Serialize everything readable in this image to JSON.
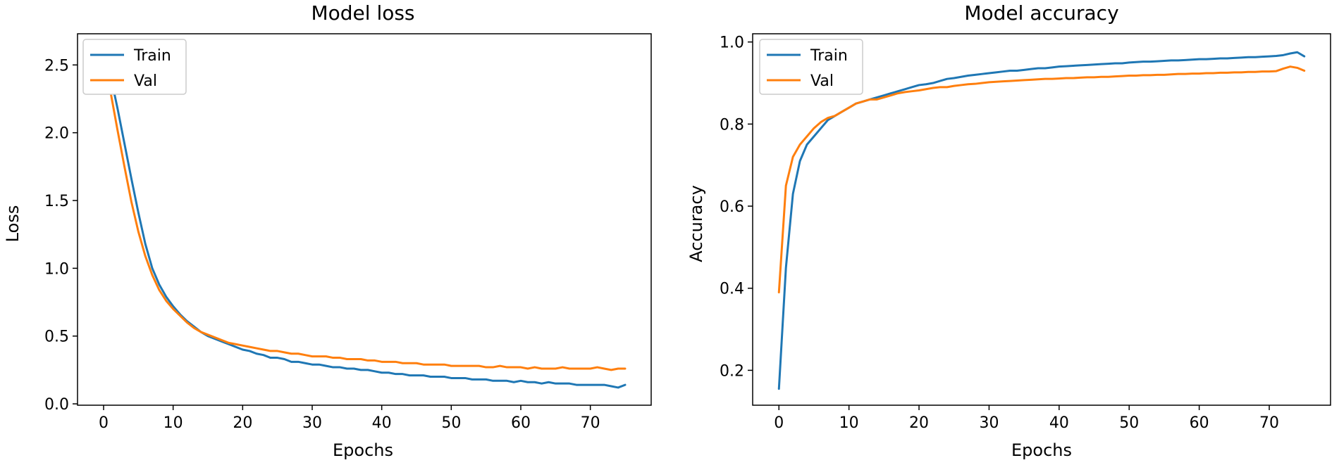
{
  "chart_data": [
    {
      "type": "line",
      "title": "Model loss",
      "xlabel": "Epochs",
      "ylabel": "Loss",
      "xlim": [
        -3.75,
        78.75
      ],
      "ylim": [
        -0.01,
        2.73
      ],
      "xticks": [
        0,
        10,
        20,
        30,
        40,
        50,
        60,
        70
      ],
      "yticks": [
        0.0,
        0.5,
        1.0,
        1.5,
        2.0,
        2.5
      ],
      "xtick_labels": [
        "0",
        "10",
        "20",
        "30",
        "40",
        "50",
        "60",
        "70"
      ],
      "ytick_labels": [
        "0.0",
        "0.5",
        "1.0",
        "1.5",
        "2.0",
        "2.5"
      ],
      "grid": false,
      "legend_position": "top-left",
      "series": [
        {
          "name": "Train",
          "color": "#1f77b4",
          "x": [
            0,
            1,
            2,
            3,
            4,
            5,
            6,
            7,
            8,
            9,
            10,
            11,
            12,
            13,
            14,
            15,
            16,
            17,
            18,
            19,
            20,
            21,
            22,
            23,
            24,
            25,
            26,
            27,
            28,
            29,
            30,
            31,
            32,
            33,
            34,
            35,
            36,
            37,
            38,
            39,
            40,
            41,
            42,
            43,
            44,
            45,
            46,
            47,
            48,
            49,
            50,
            51,
            52,
            53,
            54,
            55,
            56,
            57,
            58,
            59,
            60,
            61,
            62,
            63,
            64,
            65,
            66,
            67,
            68,
            69,
            70,
            71,
            72,
            73,
            74,
            75
          ],
          "values": [
            2.64,
            2.42,
            2.18,
            1.92,
            1.66,
            1.41,
            1.18,
            1.0,
            0.88,
            0.79,
            0.72,
            0.66,
            0.61,
            0.57,
            0.53,
            0.5,
            0.48,
            0.46,
            0.44,
            0.42,
            0.4,
            0.39,
            0.37,
            0.36,
            0.34,
            0.34,
            0.33,
            0.31,
            0.31,
            0.3,
            0.29,
            0.29,
            0.28,
            0.27,
            0.27,
            0.26,
            0.26,
            0.25,
            0.25,
            0.24,
            0.23,
            0.23,
            0.22,
            0.22,
            0.21,
            0.21,
            0.21,
            0.2,
            0.2,
            0.2,
            0.19,
            0.19,
            0.19,
            0.18,
            0.18,
            0.18,
            0.17,
            0.17,
            0.17,
            0.16,
            0.17,
            0.16,
            0.16,
            0.15,
            0.16,
            0.15,
            0.15,
            0.15,
            0.14,
            0.14,
            0.14,
            0.14,
            0.14,
            0.13,
            0.12,
            0.14
          ]
        },
        {
          "name": "Val",
          "color": "#ff7f0e",
          "x": [
            0,
            1,
            2,
            3,
            4,
            5,
            6,
            7,
            8,
            9,
            10,
            11,
            12,
            13,
            14,
            15,
            16,
            17,
            18,
            19,
            20,
            21,
            22,
            23,
            24,
            25,
            26,
            27,
            28,
            29,
            30,
            31,
            32,
            33,
            34,
            35,
            36,
            37,
            38,
            39,
            40,
            41,
            42,
            43,
            44,
            45,
            46,
            47,
            48,
            49,
            50,
            51,
            52,
            53,
            54,
            55,
            56,
            57,
            58,
            59,
            60,
            61,
            62,
            63,
            64,
            65,
            66,
            67,
            68,
            69,
            70,
            71,
            72,
            73,
            74,
            75
          ],
          "values": [
            2.55,
            2.3,
            2.02,
            1.75,
            1.49,
            1.27,
            1.09,
            0.95,
            0.84,
            0.76,
            0.7,
            0.65,
            0.6,
            0.56,
            0.53,
            0.51,
            0.49,
            0.47,
            0.45,
            0.44,
            0.43,
            0.42,
            0.41,
            0.4,
            0.39,
            0.39,
            0.38,
            0.37,
            0.37,
            0.36,
            0.35,
            0.35,
            0.35,
            0.34,
            0.34,
            0.33,
            0.33,
            0.33,
            0.32,
            0.32,
            0.31,
            0.31,
            0.31,
            0.3,
            0.3,
            0.3,
            0.29,
            0.29,
            0.29,
            0.29,
            0.28,
            0.28,
            0.28,
            0.28,
            0.28,
            0.27,
            0.27,
            0.28,
            0.27,
            0.27,
            0.27,
            0.26,
            0.27,
            0.26,
            0.26,
            0.26,
            0.27,
            0.26,
            0.26,
            0.26,
            0.26,
            0.27,
            0.26,
            0.25,
            0.26,
            0.26
          ]
        }
      ]
    },
    {
      "type": "line",
      "title": "Model accuracy",
      "xlabel": "Epochs",
      "ylabel": "Accuracy",
      "xlim": [
        -3.75,
        78.75
      ],
      "ylim": [
        0.115,
        1.02
      ],
      "xticks": [
        0,
        10,
        20,
        30,
        40,
        50,
        60,
        70
      ],
      "yticks": [
        0.2,
        0.4,
        0.6,
        0.8,
        1.0
      ],
      "xtick_labels": [
        "0",
        "10",
        "20",
        "30",
        "40",
        "50",
        "60",
        "70"
      ],
      "ytick_labels": [
        "0.2",
        "0.4",
        "0.6",
        "0.8",
        "1.0"
      ],
      "grid": false,
      "legend_position": "top-left",
      "series": [
        {
          "name": "Train",
          "color": "#1f77b4",
          "x": [
            0,
            1,
            2,
            3,
            4,
            5,
            6,
            7,
            8,
            9,
            10,
            11,
            12,
            13,
            14,
            15,
            16,
            17,
            18,
            19,
            20,
            21,
            22,
            23,
            24,
            25,
            26,
            27,
            28,
            29,
            30,
            31,
            32,
            33,
            34,
            35,
            36,
            37,
            38,
            39,
            40,
            41,
            42,
            43,
            44,
            45,
            46,
            47,
            48,
            49,
            50,
            51,
            52,
            53,
            54,
            55,
            56,
            57,
            58,
            59,
            60,
            61,
            62,
            63,
            64,
            65,
            66,
            67,
            68,
            69,
            70,
            71,
            72,
            73,
            74,
            75
          ],
          "values": [
            0.155,
            0.45,
            0.63,
            0.71,
            0.75,
            0.77,
            0.79,
            0.81,
            0.82,
            0.83,
            0.84,
            0.85,
            0.855,
            0.86,
            0.865,
            0.87,
            0.875,
            0.88,
            0.885,
            0.89,
            0.895,
            0.897,
            0.9,
            0.905,
            0.91,
            0.912,
            0.915,
            0.918,
            0.92,
            0.922,
            0.924,
            0.926,
            0.928,
            0.93,
            0.93,
            0.932,
            0.934,
            0.936,
            0.936,
            0.938,
            0.94,
            0.941,
            0.942,
            0.943,
            0.944,
            0.945,
            0.946,
            0.947,
            0.948,
            0.948,
            0.95,
            0.951,
            0.952,
            0.952,
            0.953,
            0.954,
            0.955,
            0.955,
            0.956,
            0.957,
            0.958,
            0.958,
            0.959,
            0.96,
            0.96,
            0.961,
            0.962,
            0.963,
            0.963,
            0.964,
            0.965,
            0.966,
            0.968,
            0.972,
            0.975,
            0.965
          ]
        },
        {
          "name": "Val",
          "color": "#ff7f0e",
          "x": [
            0,
            1,
            2,
            3,
            4,
            5,
            6,
            7,
            8,
            9,
            10,
            11,
            12,
            13,
            14,
            15,
            16,
            17,
            18,
            19,
            20,
            21,
            22,
            23,
            24,
            25,
            26,
            27,
            28,
            29,
            30,
            31,
            32,
            33,
            34,
            35,
            36,
            37,
            38,
            39,
            40,
            41,
            42,
            43,
            44,
            45,
            46,
            47,
            48,
            49,
            50,
            51,
            52,
            53,
            54,
            55,
            56,
            57,
            58,
            59,
            60,
            61,
            62,
            63,
            64,
            65,
            66,
            67,
            68,
            69,
            70,
            71,
            72,
            73,
            74,
            75
          ],
          "values": [
            0.39,
            0.65,
            0.72,
            0.75,
            0.77,
            0.79,
            0.805,
            0.815,
            0.82,
            0.83,
            0.84,
            0.85,
            0.855,
            0.86,
            0.86,
            0.865,
            0.87,
            0.875,
            0.878,
            0.88,
            0.882,
            0.885,
            0.888,
            0.89,
            0.89,
            0.893,
            0.895,
            0.897,
            0.898,
            0.9,
            0.902,
            0.903,
            0.904,
            0.905,
            0.906,
            0.907,
            0.908,
            0.909,
            0.91,
            0.91,
            0.911,
            0.912,
            0.912,
            0.913,
            0.914,
            0.914,
            0.915,
            0.915,
            0.916,
            0.917,
            0.918,
            0.918,
            0.919,
            0.919,
            0.92,
            0.92,
            0.921,
            0.922,
            0.922,
            0.923,
            0.923,
            0.924,
            0.924,
            0.925,
            0.925,
            0.926,
            0.926,
            0.927,
            0.927,
            0.928,
            0.928,
            0.929,
            0.935,
            0.94,
            0.937,
            0.93
          ]
        }
      ]
    }
  ]
}
